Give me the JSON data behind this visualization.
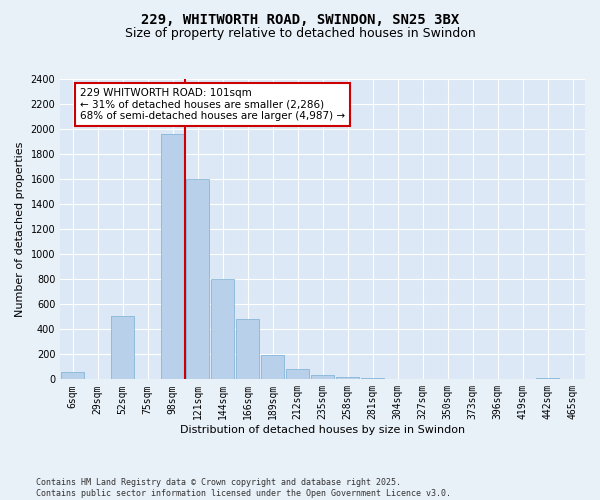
{
  "title": "229, WHITWORTH ROAD, SWINDON, SN25 3BX",
  "subtitle": "Size of property relative to detached houses in Swindon",
  "xlabel": "Distribution of detached houses by size in Swindon",
  "ylabel": "Number of detached properties",
  "footnote": "Contains HM Land Registry data © Crown copyright and database right 2025.\nContains public sector information licensed under the Open Government Licence v3.0.",
  "bar_labels": [
    "6sqm",
    "29sqm",
    "52sqm",
    "75sqm",
    "98sqm",
    "121sqm",
    "144sqm",
    "166sqm",
    "189sqm",
    "212sqm",
    "235sqm",
    "258sqm",
    "281sqm",
    "304sqm",
    "327sqm",
    "350sqm",
    "373sqm",
    "396sqm",
    "419sqm",
    "442sqm",
    "465sqm"
  ],
  "bar_values": [
    55,
    0,
    510,
    0,
    1960,
    1600,
    800,
    480,
    195,
    80,
    38,
    22,
    14,
    6,
    0,
    0,
    0,
    0,
    0,
    14,
    0
  ],
  "bar_color": "#b8d0ea",
  "bar_edge_color": "#7aafd4",
  "vline_color": "#cc0000",
  "annotation_text": "229 WHITWORTH ROAD: 101sqm\n← 31% of detached houses are smaller (2,286)\n68% of semi-detached houses are larger (4,987) →",
  "annotation_box_color": "#ffffff",
  "annotation_box_edge": "#cc0000",
  "ylim": [
    0,
    2400
  ],
  "yticks": [
    0,
    200,
    400,
    600,
    800,
    1000,
    1200,
    1400,
    1600,
    1800,
    2000,
    2200,
    2400
  ],
  "bg_color": "#dce8f5",
  "fig_bg_color": "#e8f0f8",
  "grid_color": "#ffffff",
  "title_fontsize": 10,
  "subtitle_fontsize": 9,
  "axis_label_fontsize": 8,
  "tick_fontsize": 7,
  "annotation_fontsize": 7.5,
  "footnote_fontsize": 6
}
